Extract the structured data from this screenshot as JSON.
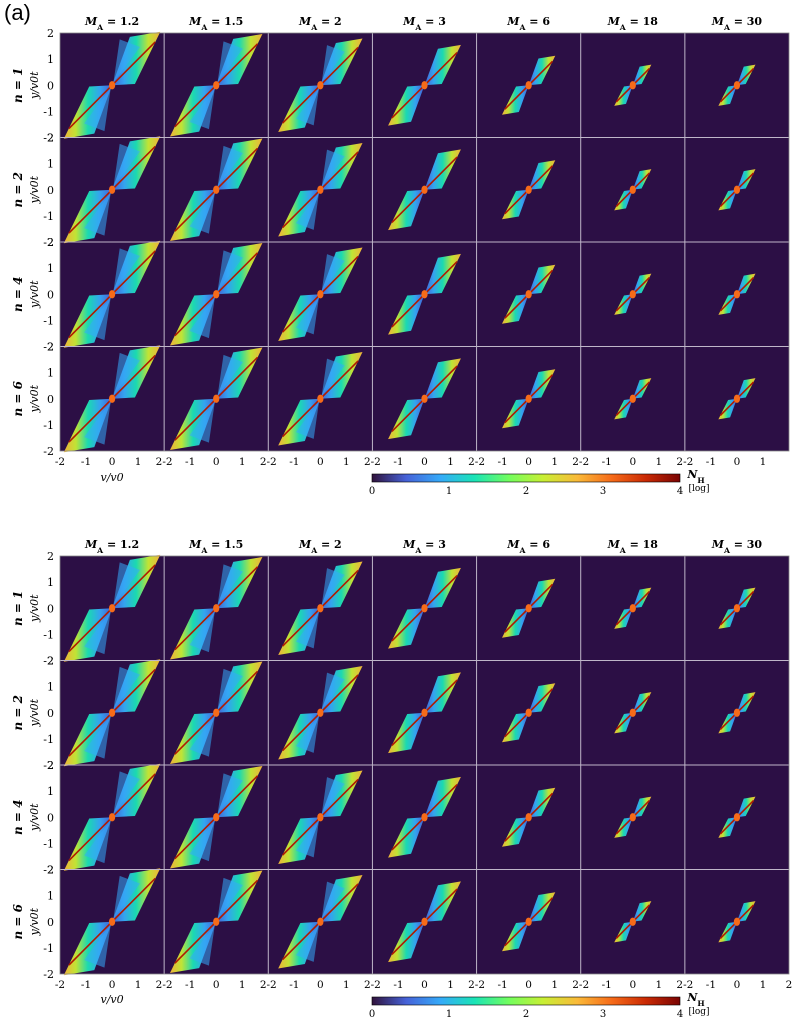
{
  "figure": {
    "panel_label": "(a)",
    "colors": {
      "background": "#2c0f45",
      "grid": "#bfb6c9",
      "ridge": "#b01a00"
    },
    "colormap": [
      "#30123b",
      "#4662d8",
      "#35aaf9",
      "#1ae4b6",
      "#72fe5e",
      "#c8ef34",
      "#faba39",
      "#f66b19",
      "#ca2a04",
      "#7a0403"
    ]
  },
  "chart_data": [
    {
      "type": "heatmap",
      "title": "",
      "column_labels": [
        "M_A = 1.2",
        "M_A = 1.5",
        "M_A = 2",
        "M_A = 3",
        "M_A = 6",
        "M_A = 18",
        "M_A = 30"
      ],
      "mach_numbers": [
        1.2,
        1.5,
        2,
        3,
        6,
        18,
        30
      ],
      "row_labels": [
        "n = 1",
        "n = 2",
        "n = 4",
        "n = 6"
      ],
      "n_values": [
        1,
        2,
        4,
        6
      ],
      "xlabel": "v/v0",
      "ylabel": "y/v0t",
      "xlim": [
        -2,
        2
      ],
      "ylim": [
        -2,
        2
      ],
      "x_ticks": [
        "-2",
        "-1",
        "0",
        "1",
        "2-2",
        "-1",
        "0",
        "1",
        "2-2",
        "-1",
        "0",
        "1",
        "2-2",
        "-1",
        "0",
        "1",
        "2-2",
        "-1",
        "0",
        "1",
        "2-2",
        "-1",
        "0",
        "1",
        "2-2",
        "-1",
        "0",
        "1"
      ],
      "y_ticks": [
        "2",
        "1",
        "0",
        "-1",
        "-2"
      ],
      "colorbar": {
        "label": "N_H",
        "unit": "[log]",
        "ticks": [
          "0",
          "1",
          "2",
          "3",
          "4"
        ],
        "range": [
          0,
          4
        ]
      },
      "grid": true
    },
    {
      "type": "heatmap",
      "title": "",
      "column_labels": [
        "M_A = 1.2",
        "M_A = 1.5",
        "M_A = 2",
        "M_A = 3",
        "M_A = 6",
        "M_A = 18",
        "M_A = 30"
      ],
      "mach_numbers": [
        1.2,
        1.5,
        2,
        3,
        6,
        18,
        30
      ],
      "row_labels": [
        "n = 1",
        "n = 2",
        "n = 4",
        "n = 6"
      ],
      "n_values": [
        1,
        2,
        4,
        6
      ],
      "xlabel": "v/v0",
      "ylabel": "y/v0t",
      "xlim": [
        -2,
        2
      ],
      "ylim": [
        -2,
        2
      ],
      "x_ticks": [
        "-2",
        "-1",
        "0",
        "1",
        "2-2",
        "-1",
        "0",
        "1",
        "2-2",
        "-1",
        "0",
        "1",
        "2-2",
        "-1",
        "0",
        "1",
        "2-2",
        "-1",
        "0",
        "1",
        "2-2",
        "-1",
        "0",
        "1",
        "2-2",
        "-1",
        "0",
        "1",
        "2"
      ],
      "y_ticks": [
        "2",
        "1",
        "0",
        "-1",
        "-2"
      ],
      "colorbar": {
        "label": "N_H",
        "unit": "[log]",
        "ticks": [
          "0",
          "1",
          "2",
          "3",
          "4"
        ],
        "range": [
          0,
          4
        ]
      },
      "grid": true
    }
  ]
}
